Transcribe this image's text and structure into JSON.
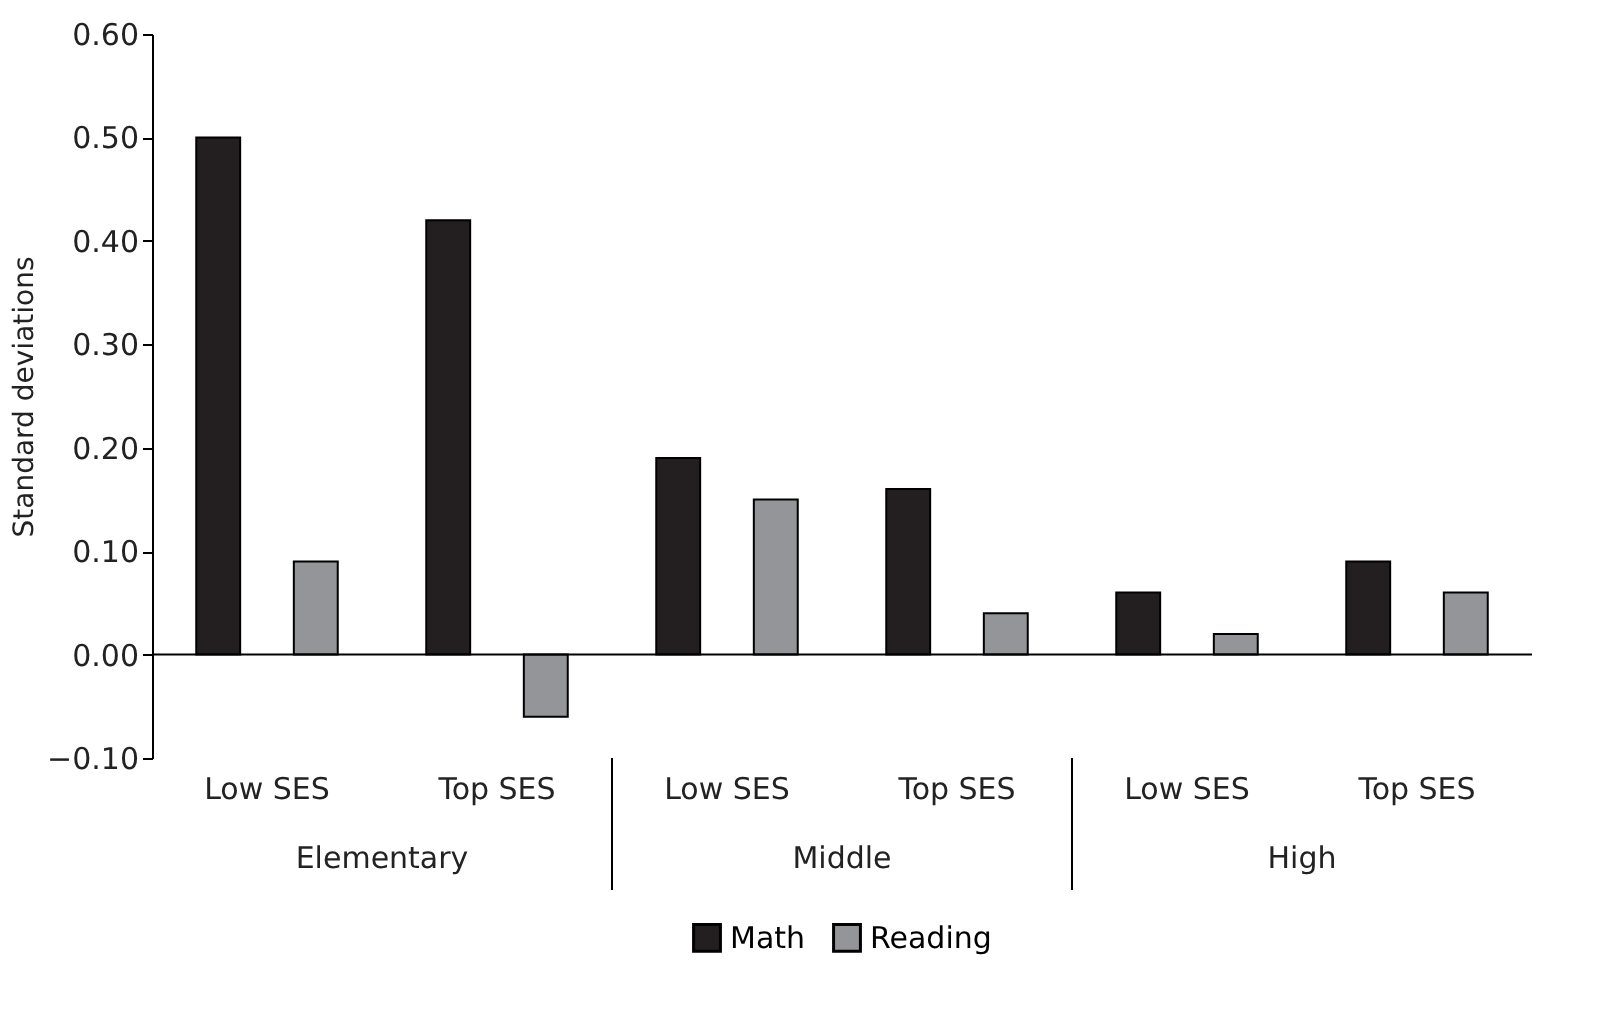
{
  "chart_data": {
    "type": "bar",
    "ylabel": "Standard deviations",
    "categories": [
      "Low SES",
      "Top SES",
      "Low SES",
      "Top SES",
      "Low SES",
      "Top SES"
    ],
    "series": [
      {
        "name": "Math",
        "color": "#231f20",
        "values": [
          0.5,
          0.42,
          0.19,
          0.16,
          0.06,
          0.09
        ]
      },
      {
        "name": "Reading",
        "color": "#939598",
        "values": [
          0.09,
          -0.06,
          0.15,
          0.04,
          0.02,
          0.06
        ]
      }
    ],
    "ylim": [
      -0.1,
      0.6
    ],
    "yticks": [
      {
        "value": -0.1,
        "label": "−0.10"
      },
      {
        "value": 0,
        "label": "0.00"
      },
      {
        "value": 0.1,
        "label": "0.10"
      },
      {
        "value": 0.2,
        "label": "0.20"
      },
      {
        "value": 0.3,
        "label": "0.30"
      },
      {
        "value": 0.4,
        "label": "0.40"
      },
      {
        "value": 0.5,
        "label": "0.50"
      },
      {
        "value": 0.6,
        "label": "0.60"
      }
    ],
    "ref_lines": [
      {
        "axis": "y",
        "value": 0,
        "color": "#000000"
      }
    ],
    "annotations": [
      "Elementary",
      "Middle",
      "High"
    ],
    "grid": false,
    "legend": "bottom"
  }
}
